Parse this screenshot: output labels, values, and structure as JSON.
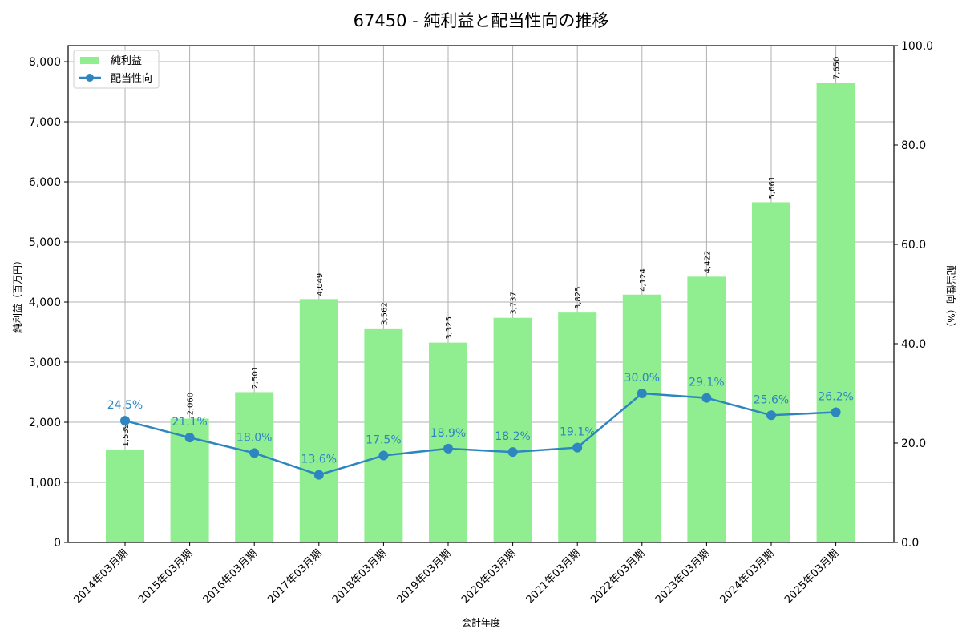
{
  "chart_data": {
    "type": "bar+line",
    "title": "67450 - 純利益と配当性向の推移",
    "xlabel": "会計年度",
    "ylabel": "純利益（百万円）",
    "y2label": "配当性向（%）",
    "categories": [
      "2014年03月期",
      "2015年03月期",
      "2016年03月期",
      "2017年03月期",
      "2018年03月期",
      "2019年03月期",
      "2020年03月期",
      "2021年03月期",
      "2022年03月期",
      "2023年03月期",
      "2024年03月期",
      "2025年03月期"
    ],
    "series": [
      {
        "name": "純利益",
        "type": "bar",
        "axis": "left",
        "color": "#90EE90",
        "values": [
          1539,
          2060,
          2501,
          4049,
          3562,
          3325,
          3737,
          3825,
          4124,
          4422,
          5661,
          7650
        ],
        "labels": [
          "1,539",
          "2,060",
          "2,501",
          "4,049",
          "3,562",
          "3,325",
          "3,737",
          "3,825",
          "4,124",
          "4,422",
          "5,661",
          "7,650"
        ]
      },
      {
        "name": "配当性向",
        "type": "line",
        "axis": "right",
        "color": "#2E86C1",
        "values": [
          24.5,
          21.1,
          18.0,
          13.6,
          17.5,
          18.9,
          18.2,
          19.1,
          30.0,
          29.1,
          25.6,
          26.2
        ],
        "labels": [
          "24.5%",
          "21.1%",
          "18.0%",
          "13.6%",
          "17.5%",
          "18.9%",
          "18.2%",
          "19.1%",
          "30.0%",
          "29.1%",
          "25.6%",
          "26.2%"
        ]
      }
    ],
    "ylim": [
      0,
      8267
    ],
    "y2lim": [
      0,
      100
    ],
    "yticks": [
      0,
      1000,
      2000,
      3000,
      4000,
      5000,
      6000,
      7000,
      8000
    ],
    "ytick_labels": [
      "0",
      "1,000",
      "2,000",
      "3,000",
      "4,000",
      "5,000",
      "6,000",
      "7,000",
      "8,000"
    ],
    "y2ticks": [
      0,
      20,
      40,
      60,
      80,
      100
    ],
    "y2tick_labels": [
      "0.0",
      "20.0",
      "40.0",
      "60.0",
      "80.0",
      "100.0"
    ],
    "grid": true,
    "legend_position": "upper left",
    "legend": [
      "純利益",
      "配当性向"
    ]
  }
}
